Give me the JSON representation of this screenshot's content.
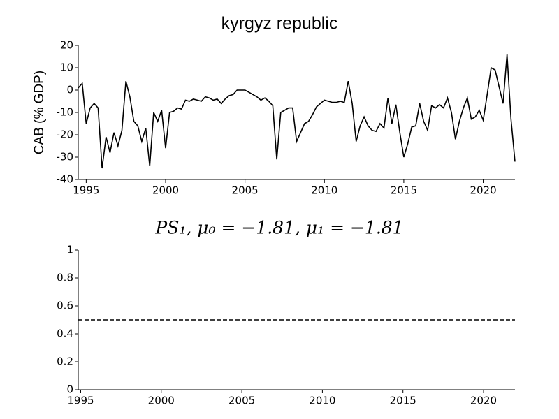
{
  "chart_data": [
    {
      "type": "line",
      "title": "kyrgyz republic",
      "ylabel": "CAB (% GDP)",
      "x": [
        1994.5,
        1994.75,
        1995,
        1995.25,
        1995.5,
        1995.75,
        1996,
        1996.25,
        1996.5,
        1996.75,
        1997,
        1997.25,
        1997.5,
        1997.75,
        1998,
        1998.25,
        1998.5,
        1998.75,
        1999,
        1999.25,
        1999.5,
        1999.75,
        2000,
        2000.25,
        2000.5,
        2000.75,
        2001,
        2001.25,
        2001.5,
        2001.75,
        2002,
        2002.25,
        2002.5,
        2002.75,
        2003,
        2003.25,
        2003.5,
        2003.75,
        2004,
        2004.25,
        2004.5,
        2004.75,
        2005,
        2005.25,
        2005.5,
        2005.75,
        2006,
        2006.25,
        2006.5,
        2006.75,
        2007,
        2007.25,
        2007.5,
        2007.75,
        2008,
        2008.25,
        2008.5,
        2008.75,
        2009,
        2009.25,
        2009.5,
        2009.75,
        2010,
        2010.25,
        2010.5,
        2010.75,
        2011,
        2011.25,
        2011.5,
        2011.75,
        2012,
        2012.25,
        2012.5,
        2012.75,
        2013,
        2013.25,
        2013.5,
        2013.75,
        2014,
        2014.25,
        2014.5,
        2014.75,
        2015,
        2015.25,
        2015.5,
        2015.75,
        2016,
        2016.25,
        2016.5,
        2016.75,
        2017,
        2017.25,
        2017.5,
        2017.75,
        2018,
        2018.25,
        2018.5,
        2018.75,
        2019,
        2019.25,
        2019.5,
        2019.75,
        2020,
        2020.25,
        2020.5,
        2020.75,
        2021,
        2021.25,
        2021.5,
        2021.75,
        2022
      ],
      "series": [
        {
          "color": "#000000",
          "linestyle": "solid",
          "values": [
            1,
            3,
            -15,
            -8,
            -6,
            -8,
            -35,
            -21,
            -28,
            -19,
            -25,
            -18,
            4,
            -3,
            -14,
            -16,
            -23,
            -17,
            -34,
            -10,
            -14,
            -9,
            -26,
            -10,
            -9.5,
            -8,
            -8.5,
            -4.5,
            -5,
            -4,
            -4.5,
            -5,
            -3,
            -3.5,
            -4.5,
            -4,
            -6,
            -4,
            -2.5,
            -2,
            0,
            0,
            0,
            -1,
            -2,
            -3,
            -4.5,
            -3.5,
            -5,
            -7,
            -31,
            -10,
            -9,
            -8,
            -8,
            -23,
            -19,
            -15,
            -14,
            -11,
            -7.5,
            -6,
            -4.5,
            -5,
            -5.5,
            -5.5,
            -5,
            -5.5,
            4,
            -6,
            -23,
            -16,
            -12,
            -16,
            -18,
            -18.5,
            -15,
            -17,
            -3.5,
            -15,
            -6.5,
            -19,
            -30,
            -24,
            -16.5,
            -16,
            -6,
            -14,
            -18,
            -7,
            -8,
            -6.5,
            -8,
            -3.5,
            -10,
            -22,
            -14,
            -8,
            -3.5,
            -13,
            -12,
            -9,
            -13.5,
            -2,
            10,
            9,
            1.5,
            -6,
            16,
            -13,
            -32
          ]
        }
      ],
      "xlim": [
        1994.5,
        2022
      ],
      "xticks": [
        1995,
        2000,
        2005,
        2010,
        2015,
        2020
      ],
      "ylim": [
        -40,
        20
      ],
      "yticks": [
        20,
        10,
        0,
        -10,
        -20,
        -30,
        -40
      ]
    },
    {
      "type": "line",
      "title": "PS₁, μ₀ = −1.81, μ₁ = −1.81",
      "x": [
        1994.85,
        2021.95
      ],
      "series": [
        {
          "color": "#000000",
          "linestyle": "dashed",
          "values": [
            0.5,
            0.5
          ]
        }
      ],
      "xlim": [
        1994.85,
        2021.95
      ],
      "xticks": [
        1995,
        2000,
        2005,
        2010,
        2015,
        2020
      ],
      "ylim": [
        0,
        1
      ],
      "yticks": [
        1,
        0.8,
        0.6,
        0.4,
        0.2,
        0
      ]
    }
  ]
}
